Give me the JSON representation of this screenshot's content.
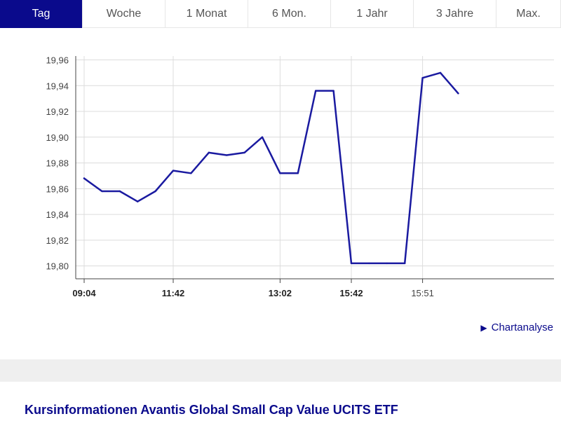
{
  "tabs": [
    {
      "label": "Tag",
      "active": true
    },
    {
      "label": "Woche",
      "active": false
    },
    {
      "label": "1 Monat",
      "active": false
    },
    {
      "label": "6 Mon.",
      "active": false
    },
    {
      "label": "1 Jahr",
      "active": false
    },
    {
      "label": "3 Jahre",
      "active": false
    },
    {
      "label": "Max.",
      "active": false
    }
  ],
  "chartanalyse_label": "Chartanalyse",
  "info_title": "Kursinformationen Avantis Global Small Cap Value UCITS ETF",
  "colors": {
    "accent": "#0a0a8c",
    "line": "#1a1aa0"
  },
  "chart_data": {
    "type": "line",
    "title": "",
    "xlabel": "",
    "ylabel": "",
    "ylim": [
      19.79,
      19.963
    ],
    "y_ticks": [
      "19,96",
      "19,94",
      "19,92",
      "19,90",
      "19,88",
      "19,86",
      "19,84",
      "19,82",
      "19,80"
    ],
    "y_tick_values": [
      19.96,
      19.94,
      19.92,
      19.9,
      19.88,
      19.86,
      19.84,
      19.82,
      19.8
    ],
    "x_ticks": [
      {
        "label": "09:04",
        "bold": true,
        "index": 0
      },
      {
        "label": "11:42",
        "bold": true,
        "index": 5
      },
      {
        "label": "13:02",
        "bold": true,
        "index": 11
      },
      {
        "label": "15:42",
        "bold": true,
        "index": 15
      },
      {
        "label": "15:51",
        "bold": false,
        "index": 19
      }
    ],
    "grid": true,
    "series": [
      {
        "values": [
          19.868,
          19.858,
          19.858,
          19.85,
          19.858,
          19.874,
          19.872,
          19.888,
          19.886,
          19.888,
          19.9,
          19.872,
          19.872,
          19.936,
          19.936,
          19.802,
          19.802,
          19.802,
          19.802,
          19.946,
          19.95,
          19.934
        ]
      }
    ]
  }
}
